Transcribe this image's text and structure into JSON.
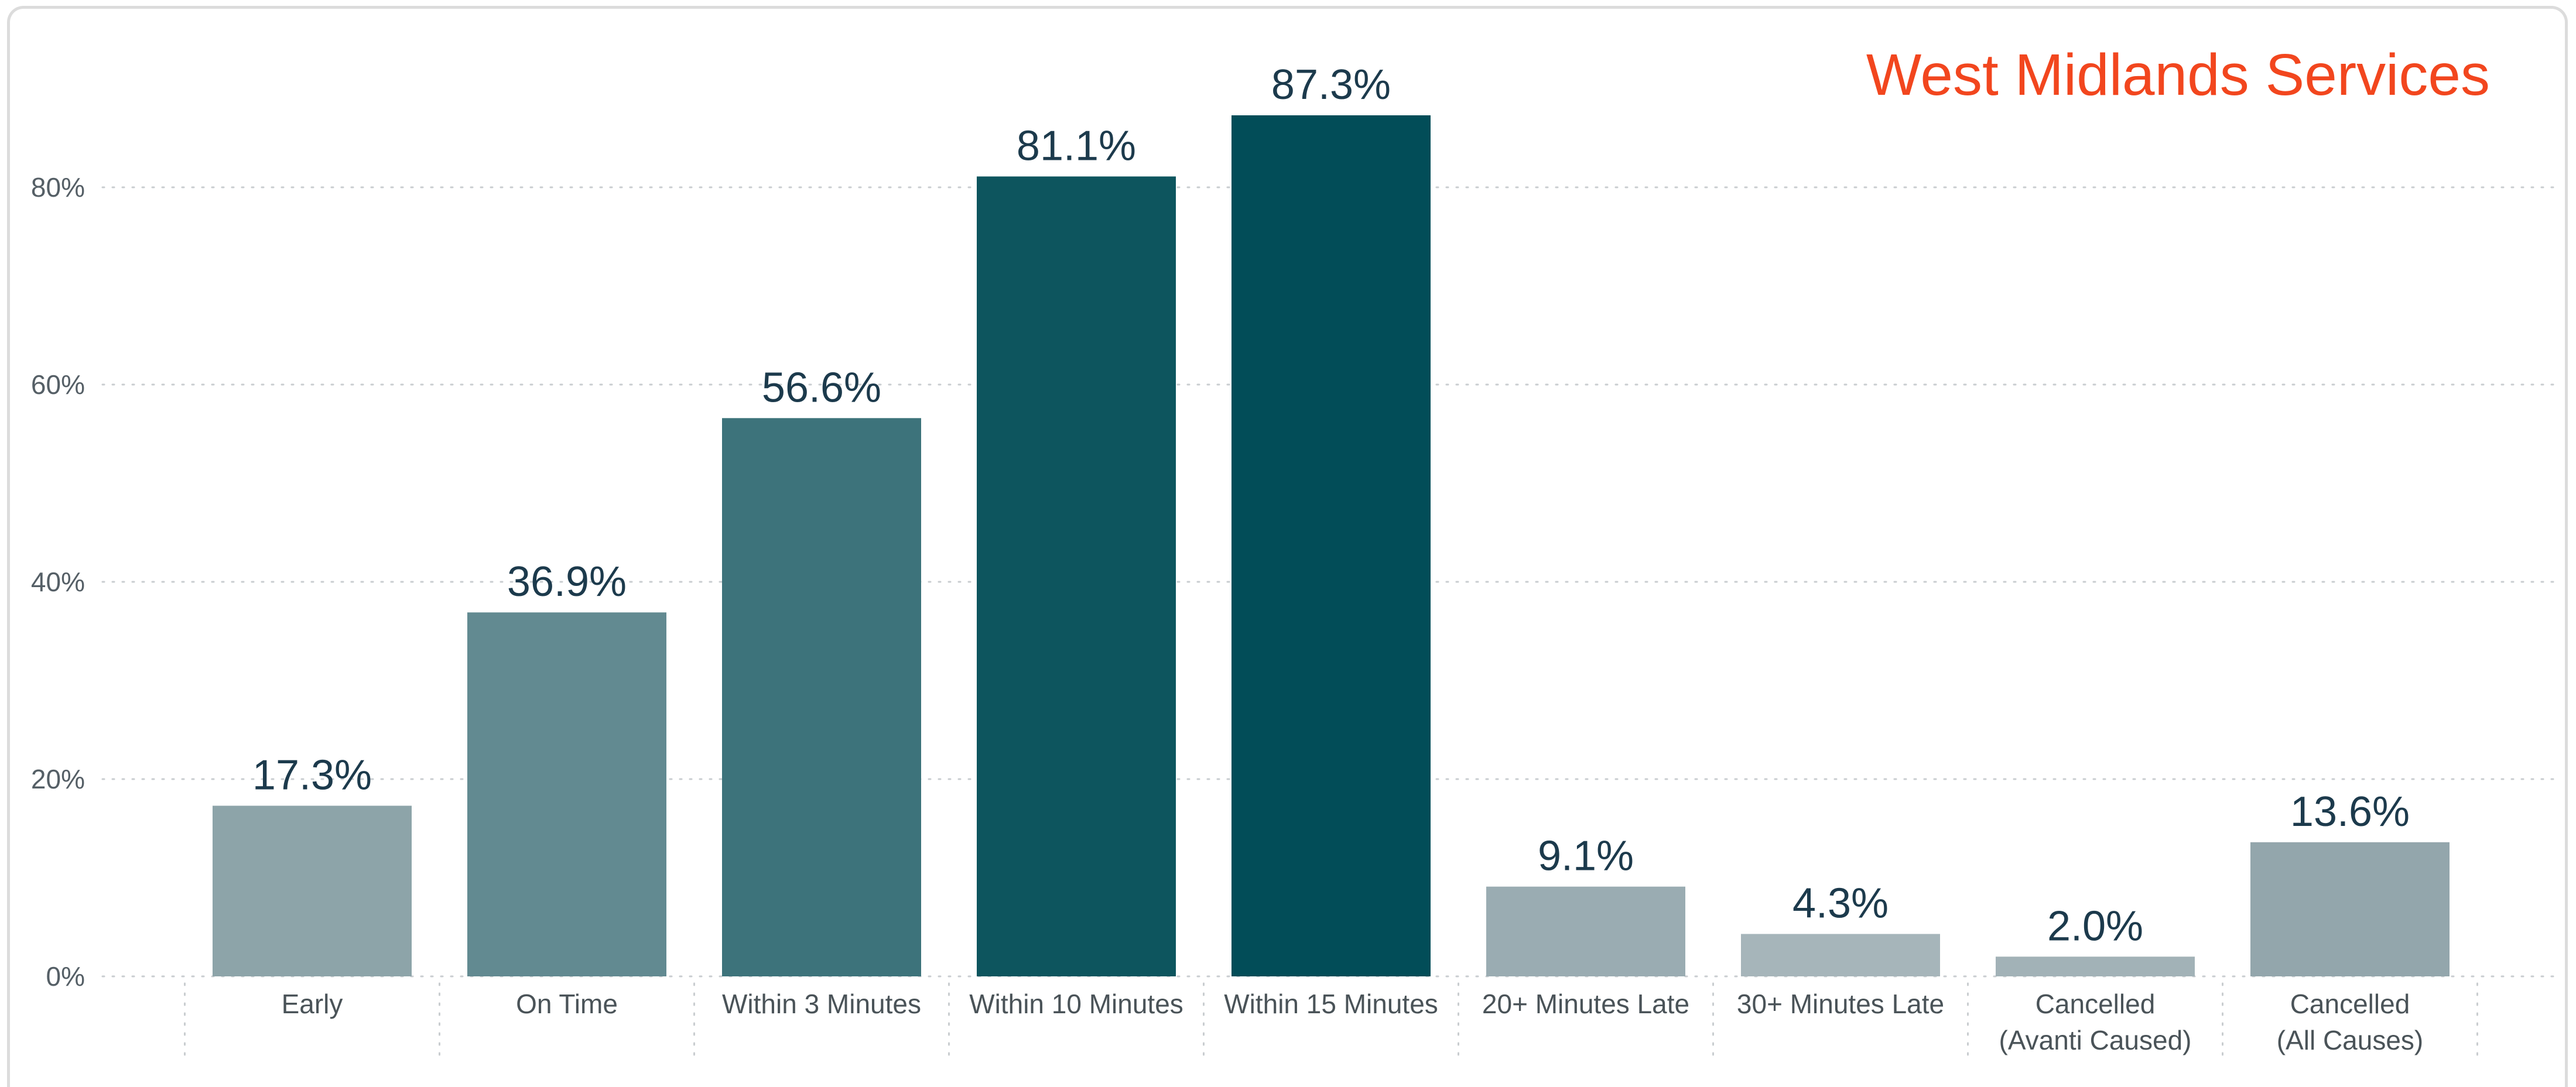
{
  "chart_data": {
    "type": "bar",
    "title": "West Midlands Services",
    "xlabel": "",
    "ylabel": "",
    "ylim": [
      0,
      88
    ],
    "yticks": [
      0,
      20,
      40,
      60,
      80
    ],
    "ytick_labels": [
      "0%",
      "20%",
      "40%",
      "60%",
      "80%"
    ],
    "grid": true,
    "categories": [
      [
        "Early"
      ],
      [
        "On Time"
      ],
      [
        "Within 3 Minutes"
      ],
      [
        "Within 10 Minutes"
      ],
      [
        "Within 15 Minutes"
      ],
      [
        "20+ Minutes Late"
      ],
      [
        "30+ Minutes Late"
      ],
      [
        "Cancelled",
        "(Avanti Caused)"
      ],
      [
        "Cancelled",
        "(All Causes)"
      ]
    ],
    "values": [
      17.3,
      36.9,
      56.6,
      81.1,
      87.3,
      9.1,
      4.3,
      2.0,
      13.6
    ],
    "value_labels": [
      "17.3%",
      "36.9%",
      "56.6%",
      "81.1%",
      "87.3%",
      "9.1%",
      "4.3%",
      "2.0%",
      "13.6%"
    ],
    "colors": [
      "#8da4a9",
      "#628a91",
      "#3d737b",
      "#0d555e",
      "#024d58",
      "#9aacb2",
      "#a6b5ba",
      "#a2b2b7",
      "#93a6ac"
    ],
    "title_color": "#f2461e"
  }
}
